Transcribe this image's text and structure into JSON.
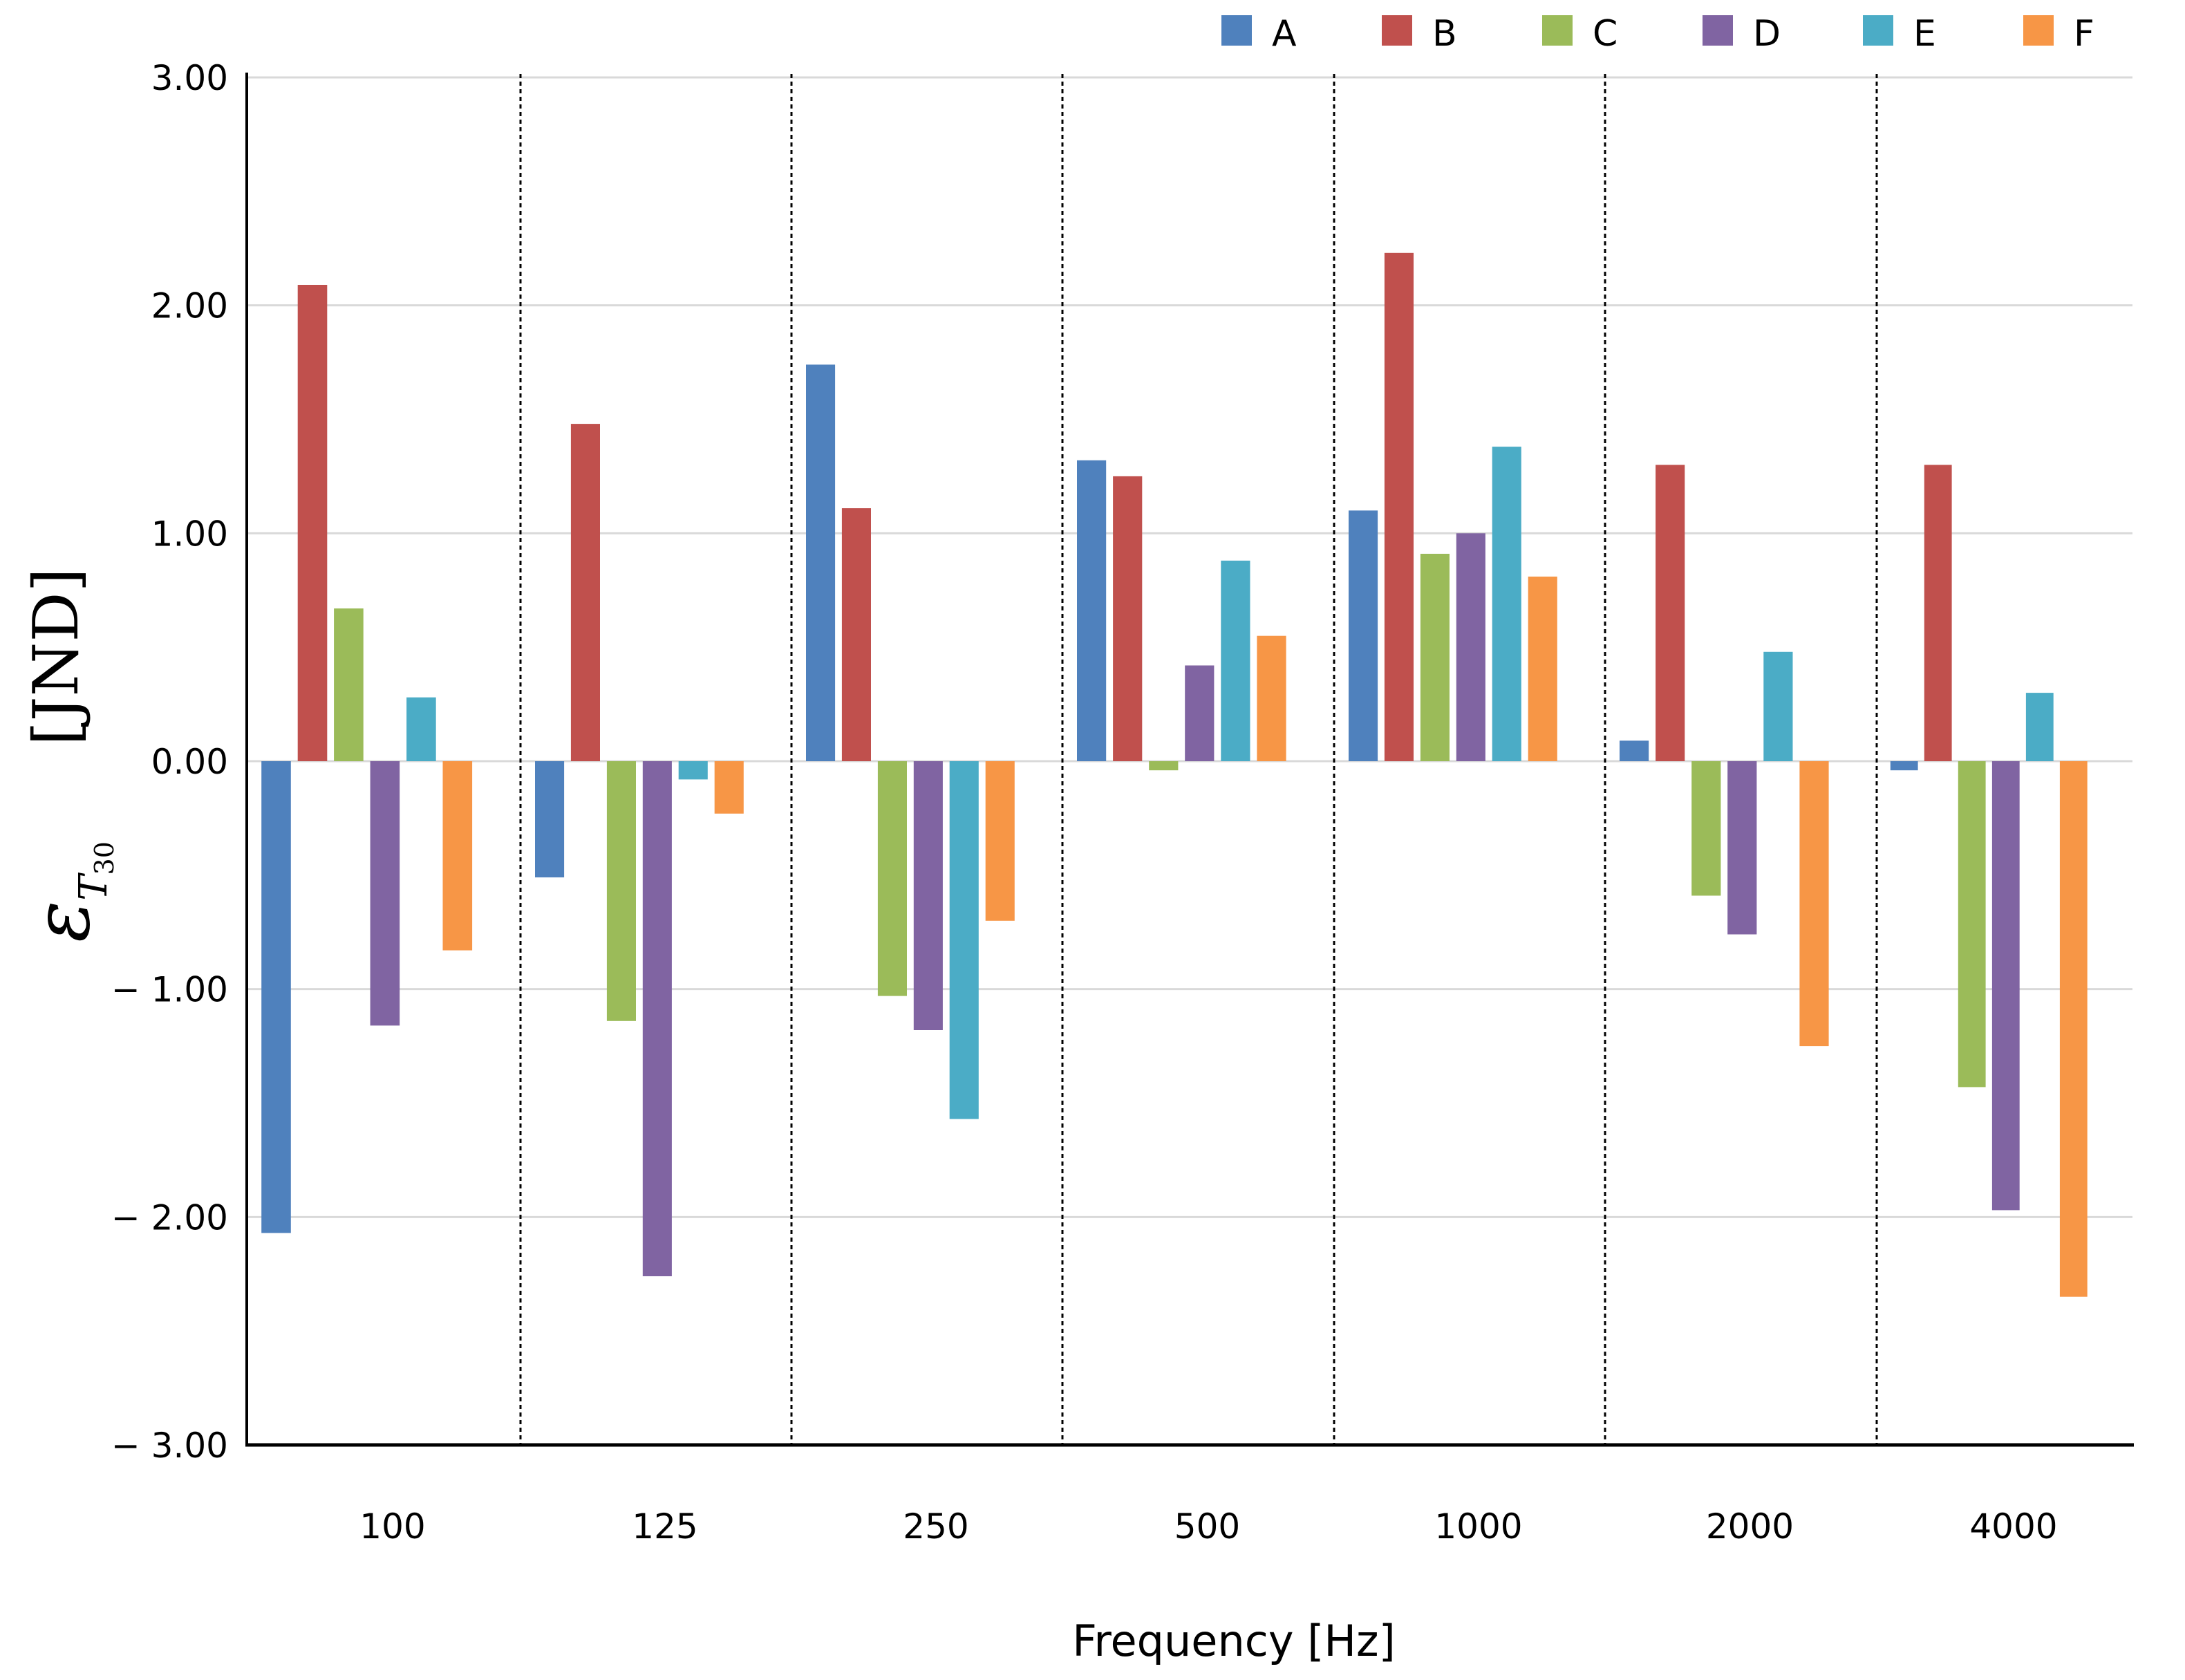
{
  "chart_data": {
    "type": "bar",
    "title": "",
    "xlabel": "Frequency [Hz]",
    "ylabel": "ε_T30 [JND]",
    "ylabel_parts": {
      "symbol": "ε",
      "subscript_main": "T",
      "subscript_sub": "30",
      "unit": "[JND]"
    },
    "ylim": [
      -3,
      3
    ],
    "ytick_values": [
      3,
      2,
      1,
      0,
      -1,
      -2,
      -3
    ],
    "ytick_labels": [
      "3.00",
      "2.00",
      "1.00",
      "0.00",
      "− 1.00",
      "− 2.00",
      "− 3.00"
    ],
    "grid": true,
    "legend_position": "top-right",
    "categories": [
      "100",
      "125",
      "250",
      "500",
      "1000",
      "2000",
      "4000"
    ],
    "series": [
      {
        "name": "A",
        "color": "#4F81BD",
        "values": [
          -2.07,
          -0.51,
          1.74,
          1.32,
          1.1,
          0.09,
          -0.04
        ]
      },
      {
        "name": "B",
        "color": "#C0504D",
        "values": [
          2.09,
          1.48,
          1.11,
          1.25,
          2.23,
          1.3,
          1.3
        ]
      },
      {
        "name": "C",
        "color": "#9BBB59",
        "values": [
          0.67,
          -1.14,
          -1.03,
          -0.04,
          0.91,
          -0.59,
          -1.43
        ]
      },
      {
        "name": "D",
        "color": "#8064A2",
        "values": [
          -1.16,
          -2.26,
          -1.18,
          0.42,
          1.0,
          -0.76,
          -1.97
        ]
      },
      {
        "name": "E",
        "color": "#4BACC6",
        "values": [
          0.28,
          -0.08,
          -1.57,
          0.88,
          1.38,
          0.48,
          0.3
        ]
      },
      {
        "name": "F",
        "color": "#F79646",
        "values": [
          -0.83,
          -0.23,
          -0.7,
          0.55,
          0.81,
          -1.25,
          -2.35
        ]
      }
    ]
  }
}
